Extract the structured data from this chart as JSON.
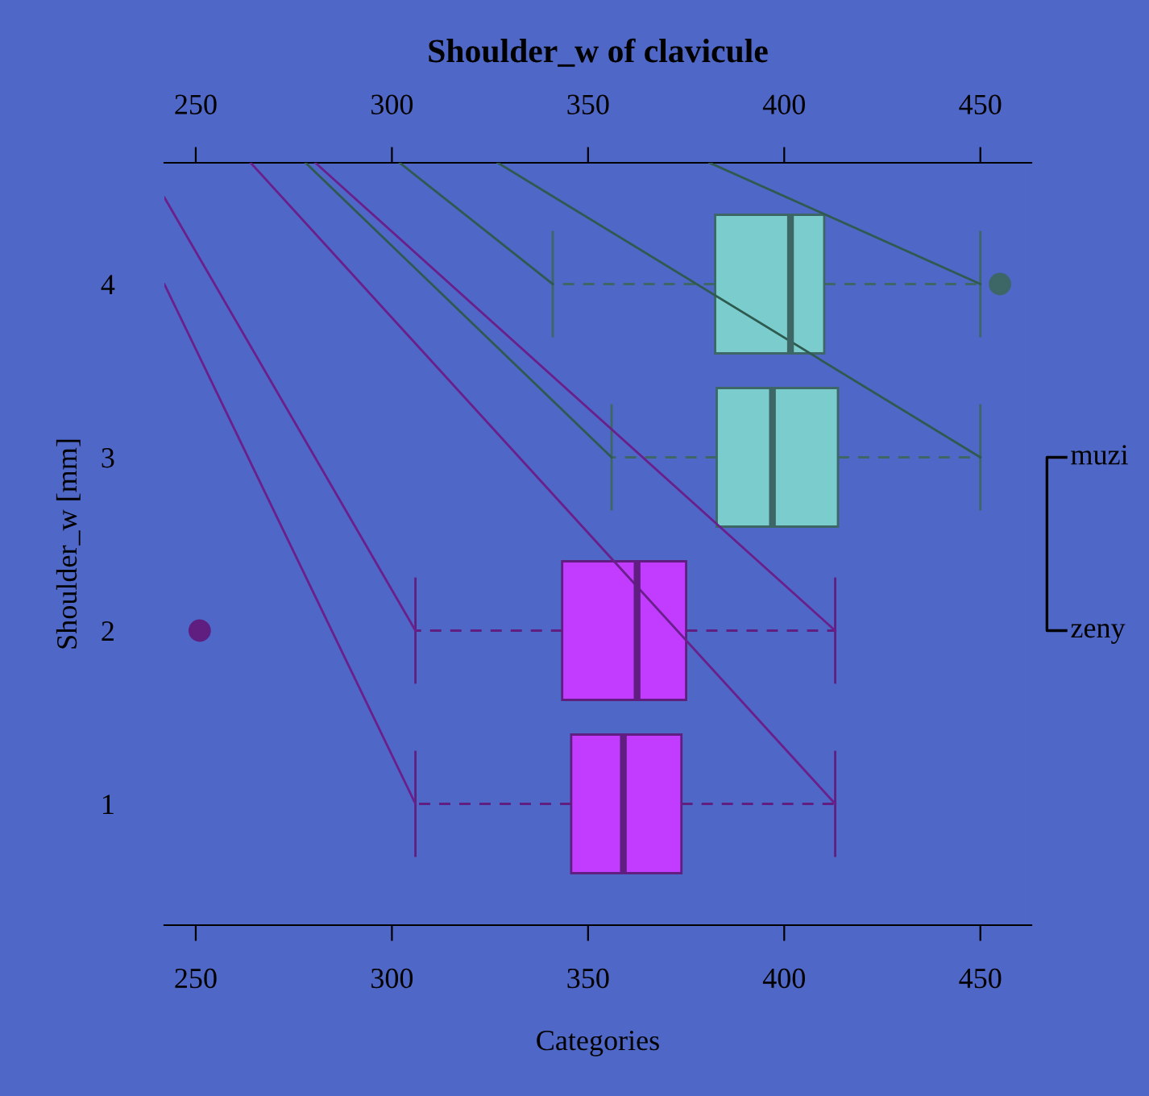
{
  "chart_data": {
    "type": "box",
    "orientation": "horizontal",
    "title": "Shoulder_w of clavicule",
    "xlabel": "Categories",
    "ylabel": "Shoulder_w [mm]",
    "xlim": [
      242,
      463
    ],
    "xticks": [
      250,
      300,
      350,
      400,
      450
    ],
    "x2lim": [
      242,
      463
    ],
    "x2ticks": [
      250,
      300,
      350,
      400,
      450
    ],
    "ylim": [
      0.3,
      4.7
    ],
    "yticks": [
      1,
      2,
      3,
      4
    ],
    "grid": false,
    "legend": false,
    "series": [
      {
        "x": [
          1,
          2
        ],
        "color": "#c13cff",
        "boxes": [
          {
            "low": 306,
            "q1": 345.7,
            "median": 359,
            "q3": 373.8,
            "high": 413
          },
          {
            "low": 306,
            "q1": 343.4,
            "median": 362.5,
            "q3": 375,
            "high": 413,
            "outliers": [
              251
            ]
          }
        ]
      },
      {
        "x": [
          3,
          4
        ],
        "color": "#7acdcc",
        "boxes": [
          {
            "low": 356,
            "q1": 382.8,
            "median": 397,
            "q3": 413.7,
            "high": 450
          },
          {
            "low": 341,
            "q1": 382.4,
            "median": 401.6,
            "q3": 410.2,
            "high": 450,
            "outliers": [
              455
            ]
          }
        ]
      },
      {
        "type": "line",
        "color": "#2e5a50",
        "x": [
          4.7,
          3
        ],
        "values": [
          278,
          356
        ]
      },
      {
        "type": "line",
        "color": "#2e5a50",
        "x": [
          4.7,
          4
        ],
        "values": [
          302,
          341
        ]
      },
      {
        "type": "line",
        "color": "#2e5a50",
        "x": [
          4.7,
          3
        ],
        "values": [
          327,
          450
        ]
      },
      {
        "type": "line",
        "color": "#2e5a50",
        "x": [
          4.7,
          4
        ],
        "values": [
          381,
          450
        ]
      },
      {
        "type": "line",
        "color": "#6a1f8a",
        "x": [
          4.5,
          2
        ],
        "values": [
          242,
          306
        ]
      },
      {
        "type": "line",
        "color": "#6a1f8a",
        "x": [
          4.0,
          1
        ],
        "values": [
          242,
          306
        ]
      },
      {
        "type": "line",
        "color": "#6a1f8a",
        "x": [
          4.7,
          1
        ],
        "values": [
          264,
          413
        ]
      },
      {
        "type": "line",
        "color": "#6a1f8a",
        "x": [
          4.7,
          2
        ],
        "values": [
          280.5,
          413
        ]
      }
    ],
    "annotations": [
      "muzi",
      "zeny"
    ]
  }
}
